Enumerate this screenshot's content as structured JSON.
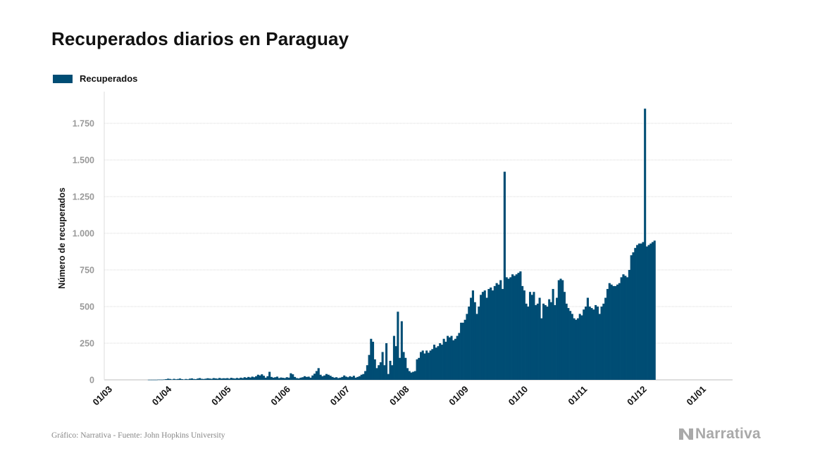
{
  "title": "Recuperados diarios en Paraguay",
  "legend": {
    "label": "Recuperados"
  },
  "footer": {
    "source": "Gráfico: Narrativa - Fuente: John Hopkins University",
    "brand": "Narrativa"
  },
  "colors": {
    "bar": "#004d74",
    "grid": "#d9d9d9",
    "tick": "#999999",
    "axis_text": "#111111"
  },
  "chart_data": {
    "type": "bar",
    "title": "Recuperados diarios en Paraguay",
    "xlabel": "",
    "ylabel": "Número de recuperados",
    "ylim": [
      0,
      1900
    ],
    "yticks": [
      0,
      250,
      500,
      750,
      1000,
      1250,
      1500,
      1750
    ],
    "ytick_labels": [
      "0",
      "250",
      "500",
      "750",
      "1.000",
      "1.250",
      "1.500",
      "1.750"
    ],
    "xticks": [
      "01/03",
      "01/04",
      "01/05",
      "01/06",
      "01/07",
      "01/08",
      "01/09",
      "01/10",
      "01/11",
      "01/12",
      "01/01"
    ],
    "grid": true,
    "legend_position": "top-left",
    "series": [
      {
        "name": "Recuperados",
        "months": [
          {
            "month": "03",
            "values": [
              0,
              0,
              0,
              0,
              0,
              0,
              0,
              0,
              0,
              0,
              0,
              0,
              0,
              0,
              0,
              0,
              0,
              0,
              0,
              0,
              0,
              0,
              1,
              1,
              1,
              1,
              1,
              2,
              2,
              2,
              3
            ]
          },
          {
            "month": "04",
            "values": [
              5,
              8,
              6,
              3,
              7,
              4,
              6,
              9,
              5,
              3,
              6,
              4,
              8,
              10,
              6,
              5,
              9,
              12,
              7,
              6,
              8,
              11,
              9,
              7,
              12,
              10,
              8,
              13,
              9,
              11
            ]
          },
          {
            "month": "05",
            "values": [
              10,
              12,
              8,
              14,
              11,
              9,
              13,
              10,
              15,
              12,
              18,
              14,
              20,
              16,
              22,
              18,
              25,
              35,
              30,
              38,
              28,
              15,
              25,
              55,
              20,
              15,
              18,
              22,
              12,
              16,
              14
            ]
          },
          {
            "month": "06",
            "values": [
              12,
              18,
              15,
              45,
              38,
              20,
              12,
              10,
              15,
              18,
              25,
              20,
              22,
              15,
              30,
              42,
              60,
              80,
              35,
              25,
              30,
              40,
              35,
              28,
              20,
              15,
              18,
              12,
              15,
              20
            ]
          },
          {
            "month": "07",
            "values": [
              30,
              22,
              18,
              25,
              20,
              28,
              15,
              20,
              25,
              35,
              40,
              60,
              100,
              170,
              280,
              260,
              140,
              80,
              100,
              120,
              190,
              100,
              250,
              40,
              130,
              100,
              300,
              230,
              465,
              150,
              400
            ]
          },
          {
            "month": "08",
            "values": [
              190,
              150,
              80,
              60,
              50,
              55,
              60,
              140,
              150,
              190,
              200,
              180,
              200,
              185,
              200,
              210,
              240,
              220,
              230,
              250,
              240,
              280,
              260,
              300,
              290,
              300,
              270,
              280,
              300,
              320,
              390
            ]
          },
          {
            "month": "09",
            "values": [
              390,
              410,
              450,
              500,
              560,
              610,
              530,
              450,
              500,
              580,
              600,
              610,
              560,
              620,
              630,
              610,
              640,
              660,
              650,
              680,
              620,
              1420,
              700,
              690,
              700,
              720,
              710,
              720,
              730,
              740
            ]
          },
          {
            "month": "10",
            "values": [
              640,
              610,
              520,
              500,
              600,
              580,
              600,
              510,
              520,
              560,
              420,
              520,
              510,
              500,
              550,
              530,
              620,
              510,
              560,
              680,
              690,
              680,
              600,
              520,
              490,
              470,
              450,
              420,
              410,
              420,
              450
            ]
          },
          {
            "month": "11",
            "values": [
              440,
              480,
              500,
              560,
              500,
              490,
              480,
              510,
              500,
              450,
              500,
              520,
              560,
              620,
              660,
              650,
              640,
              640,
              650,
              660,
              700,
              720,
              710,
              700,
              750,
              850,
              870,
              900,
              920,
              930
            ]
          },
          {
            "month": "12",
            "values": [
              930,
              940,
              1850,
              910,
              920,
              930,
              940,
              950
            ]
          }
        ]
      }
    ]
  }
}
